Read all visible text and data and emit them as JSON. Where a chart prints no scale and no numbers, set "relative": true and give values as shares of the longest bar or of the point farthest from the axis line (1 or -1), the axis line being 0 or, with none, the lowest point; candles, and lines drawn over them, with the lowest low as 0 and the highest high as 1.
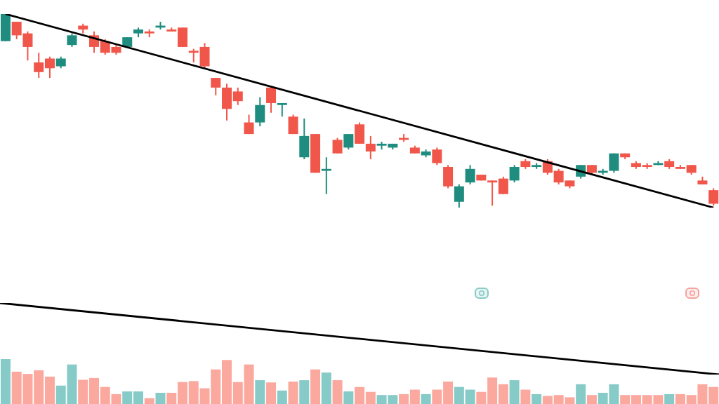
{
  "chart_data": [
    {
      "type": "candlestick",
      "relative": true,
      "categories": [
        null,
        null,
        null,
        null,
        null,
        null,
        null,
        null,
        null,
        null,
        null,
        null,
        null,
        null,
        null,
        null,
        null,
        null,
        null,
        null,
        null,
        null,
        null,
        null,
        null,
        null,
        null,
        null,
        null,
        null,
        null,
        null,
        null,
        null,
        null,
        null,
        null,
        null,
        null,
        null,
        null,
        null,
        null,
        null,
        null,
        null,
        null,
        null,
        null,
        null,
        null,
        null,
        null,
        null,
        null,
        null,
        null,
        null,
        null,
        null,
        null,
        null,
        null,
        null,
        null
      ],
      "ohlc": [
        [
          0.86,
          1.0,
          0.86,
          1.0
        ],
        [
          0.96,
          0.96,
          0.87,
          0.89
        ],
        [
          0.9,
          0.91,
          0.76,
          0.83
        ],
        [
          0.75,
          0.8,
          0.67,
          0.7
        ],
        [
          0.77,
          0.78,
          0.67,
          0.72
        ],
        [
          0.73,
          0.78,
          0.72,
          0.77
        ],
        [
          0.84,
          0.9,
          0.83,
          0.89
        ],
        [
          0.94,
          0.95,
          0.9,
          0.92
        ],
        [
          0.89,
          0.91,
          0.8,
          0.83
        ],
        [
          0.86,
          0.87,
          0.79,
          0.8
        ],
        [
          0.83,
          0.84,
          0.79,
          0.8
        ],
        [
          0.83,
          0.88,
          0.83,
          0.88
        ],
        [
          0.9,
          0.93,
          0.88,
          0.92
        ],
        [
          0.91,
          0.92,
          0.88,
          0.9
        ],
        [
          0.93,
          0.96,
          0.92,
          0.94
        ],
        [
          0.92,
          0.93,
          0.91,
          0.91
        ],
        [
          0.93,
          0.93,
          0.83,
          0.83
        ],
        [
          0.81,
          0.82,
          0.75,
          0.8
        ],
        [
          0.83,
          0.85,
          0.72,
          0.73
        ],
        [
          0.67,
          0.67,
          0.58,
          0.62
        ],
        [
          0.62,
          0.64,
          0.45,
          0.51
        ],
        [
          0.6,
          0.62,
          0.53,
          0.55
        ],
        [
          0.44,
          0.48,
          0.38,
          0.38
        ],
        [
          0.44,
          0.57,
          0.42,
          0.53
        ],
        [
          0.62,
          0.62,
          0.49,
          0.54
        ],
        [
          0.53,
          0.54,
          0.47,
          0.54
        ],
        [
          0.47,
          0.48,
          0.38,
          0.38
        ],
        [
          0.26,
          0.46,
          0.25,
          0.37
        ],
        [
          0.38,
          0.38,
          0.18,
          0.18
        ],
        [
          0.19,
          0.26,
          0.07,
          0.2
        ],
        [
          0.35,
          0.36,
          0.28,
          0.28
        ],
        [
          0.31,
          0.38,
          0.3,
          0.38
        ],
        [
          0.43,
          0.44,
          0.33,
          0.33
        ],
        [
          0.33,
          0.37,
          0.25,
          0.29
        ],
        [
          0.32,
          0.34,
          0.3,
          0.33
        ],
        [
          0.31,
          0.33,
          0.3,
          0.33
        ],
        [
          0.36,
          0.38,
          0.34,
          0.35
        ],
        [
          0.31,
          0.32,
          0.28,
          0.28
        ],
        [
          0.27,
          0.3,
          0.26,
          0.29
        ],
        [
          0.3,
          0.31,
          0.22,
          0.23
        ],
        [
          0.21,
          0.22,
          0.1,
          0.11
        ],
        [
          0.03,
          0.12,
          0.0,
          0.11
        ],
        [
          0.13,
          0.22,
          0.12,
          0.2
        ],
        [
          0.17,
          0.17,
          0.14,
          0.14
        ],
        [
          0.14,
          0.14,
          0.01,
          0.13
        ],
        [
          0.15,
          0.16,
          0.07,
          0.07
        ],
        [
          0.14,
          0.22,
          0.13,
          0.21
        ],
        [
          0.24,
          0.25,
          0.2,
          0.21
        ],
        [
          0.21,
          0.23,
          0.2,
          0.22
        ],
        [
          0.24,
          0.25,
          0.17,
          0.18
        ],
        [
          0.19,
          0.2,
          0.12,
          0.13
        ],
        [
          0.14,
          0.14,
          0.1,
          0.11
        ],
        [
          0.16,
          0.22,
          0.15,
          0.22
        ],
        [
          0.22,
          0.22,
          0.17,
          0.18
        ],
        [
          0.18,
          0.2,
          0.17,
          0.19
        ],
        [
          0.19,
          0.28,
          0.18,
          0.28
        ],
        [
          0.28,
          0.28,
          0.25,
          0.26
        ],
        [
          0.23,
          0.24,
          0.2,
          0.21
        ],
        [
          0.22,
          0.23,
          0.2,
          0.21
        ],
        [
          0.22,
          0.24,
          0.22,
          0.23
        ],
        [
          0.24,
          0.25,
          0.2,
          0.21
        ],
        [
          0.21,
          0.22,
          0.2,
          0.2
        ],
        [
          0.22,
          0.22,
          0.17,
          0.18
        ],
        [
          0.14,
          0.16,
          0.12,
          0.12
        ],
        [
          0.09,
          0.1,
          0.01,
          0.02
        ]
      ],
      "colors": [
        "#1e8c7e",
        "#f0564a",
        "#f0564a",
        "#f0564a",
        "#f0564a",
        "#1e8c7e",
        "#1e8c7e",
        "#f0564a",
        "#f0564a",
        "#f0564a",
        "#f0564a",
        "#1e8c7e",
        "#1e8c7e",
        "#f0564a",
        "#1e8c7e",
        "#f0564a",
        "#f0564a",
        "#f0564a",
        "#f0564a",
        "#f0564a",
        "#f0564a",
        "#f0564a",
        "#f0564a",
        "#1e8c7e",
        "#f0564a",
        "#1e8c7e",
        "#f0564a",
        "#1e8c7e",
        "#f0564a",
        "#1e8c7e",
        "#f0564a",
        "#1e8c7e",
        "#f0564a",
        "#f0564a",
        "#1e8c7e",
        "#1e8c7e",
        "#f0564a",
        "#f0564a",
        "#1e8c7e",
        "#f0564a",
        "#f0564a",
        "#1e8c7e",
        "#1e8c7e",
        "#f0564a",
        "#f0564a",
        "#f0564a",
        "#1e8c7e",
        "#f0564a",
        "#1e8c7e",
        "#f0564a",
        "#f0564a",
        "#f0564a",
        "#1e8c7e",
        "#f0564a",
        "#1e8c7e",
        "#1e8c7e",
        "#f0564a",
        "#f0564a",
        "#f0564a",
        "#1e8c7e",
        "#f0564a",
        "#f0564a",
        "#f0564a",
        "#f0564a",
        "#f0564a"
      ],
      "series": [
        {
          "type": "line",
          "color": "#000000",
          "values": [
            1.0,
            null,
            null,
            null,
            null,
            null,
            null,
            null,
            null,
            null,
            null,
            null,
            null,
            null,
            null,
            null,
            null,
            null,
            null,
            null,
            null,
            null,
            null,
            null,
            null,
            null,
            null,
            null,
            null,
            null,
            null,
            null,
            null,
            null,
            null,
            null,
            null,
            null,
            null,
            null,
            null,
            null,
            null,
            null,
            null,
            null,
            null,
            null,
            null,
            null,
            null,
            null,
            null,
            null,
            null,
            null,
            null,
            null,
            null,
            null,
            null,
            null,
            null,
            null,
            0.0
          ]
        }
      ]
    },
    {
      "type": "bar",
      "relative": true,
      "categories": [
        null,
        null,
        null,
        null,
        null,
        null,
        null,
        null,
        null,
        null,
        null,
        null,
        null,
        null,
        null,
        null,
        null,
        null,
        null,
        null,
        null,
        null,
        null,
        null,
        null,
        null,
        null,
        null,
        null,
        null,
        null,
        null,
        null,
        null,
        null,
        null,
        null,
        null,
        null,
        null,
        null,
        null,
        null,
        null,
        null,
        null,
        null,
        null,
        null,
        null,
        null,
        null,
        null,
        null,
        null,
        null,
        null,
        null,
        null,
        null,
        null,
        null,
        null,
        null,
        null
      ],
      "series": [
        {
          "type": "bar",
          "values": [
            1.0,
            0.72,
            0.67,
            0.75,
            0.61,
            0.41,
            0.88,
            0.54,
            0.58,
            0.38,
            0.22,
            0.28,
            0.28,
            0.13,
            0.25,
            0.25,
            0.49,
            0.51,
            0.35,
            0.77,
            0.98,
            0.49,
            0.88,
            0.53,
            0.48,
            0.3,
            0.5,
            0.53,
            0.77,
            0.7,
            0.53,
            0.28,
            0.38,
            0.27,
            0.2,
            0.2,
            0.22,
            0.32,
            0.22,
            0.32,
            0.5,
            0.38,
            0.32,
            0.27,
            0.59,
            0.44,
            0.53,
            0.32,
            0.22,
            0.18,
            0.2,
            0.15,
            0.44,
            0.2,
            0.25,
            0.44,
            0.2,
            0.2,
            0.2,
            0.2,
            0.22,
            0.22,
            0.2,
            0.44,
            0.38
          ],
          "colors": [
            "#86cbc7",
            "#fba89f",
            "#fba89f",
            "#fba89f",
            "#fba89f",
            "#86cbc7",
            "#86cbc7",
            "#fba89f",
            "#fba89f",
            "#fba89f",
            "#fba89f",
            "#86cbc7",
            "#86cbc7",
            "#fba89f",
            "#86cbc7",
            "#fba89f",
            "#fba89f",
            "#fba89f",
            "#fba89f",
            "#fba89f",
            "#fba89f",
            "#fba89f",
            "#fba89f",
            "#86cbc7",
            "#fba89f",
            "#86cbc7",
            "#fba89f",
            "#86cbc7",
            "#fba89f",
            "#86cbc7",
            "#fba89f",
            "#86cbc7",
            "#fba89f",
            "#fba89f",
            "#86cbc7",
            "#86cbc7",
            "#fba89f",
            "#fba89f",
            "#86cbc7",
            "#fba89f",
            "#fba89f",
            "#86cbc7",
            "#86cbc7",
            "#fba89f",
            "#fba89f",
            "#fba89f",
            "#86cbc7",
            "#fba89f",
            "#86cbc7",
            "#fba89f",
            "#fba89f",
            "#fba89f",
            "#86cbc7",
            "#fba89f",
            "#86cbc7",
            "#86cbc7",
            "#fba89f",
            "#fba89f",
            "#fba89f",
            "#fba89f",
            "#86cbc7",
            "#fba89f",
            "#fba89f",
            "#fba89f",
            "#fba89f"
          ]
        }
      ]
    },
    {
      "type": "line",
      "relative": true,
      "categories": [
        null,
        null
      ],
      "series": [
        {
          "type": "line",
          "color": "#000000",
          "values": [
            1.0,
            0.0
          ]
        }
      ]
    }
  ]
}
